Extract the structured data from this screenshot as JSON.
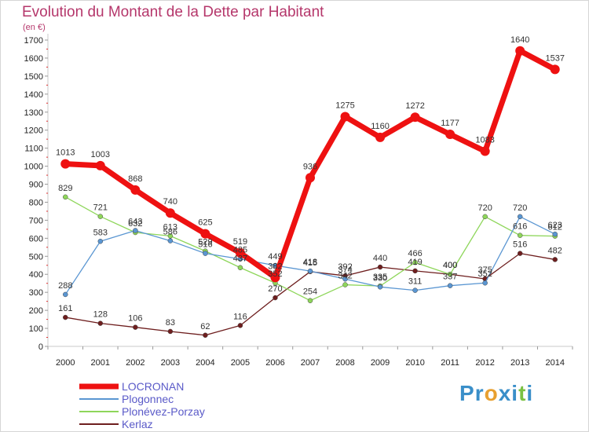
{
  "header": {
    "title": "Evolution du Montant de la Dette par Habitant",
    "unit": "(en €)"
  },
  "brand": {
    "letters": [
      "P",
      "r",
      "o",
      "x",
      "i",
      "t",
      "i"
    ],
    "colors": [
      "#3a8fc9",
      "#3a8fc9",
      "#e8a030",
      "#3a8fc9",
      "#3a8fc9",
      "#7ac143",
      "#3a8fc9"
    ]
  },
  "chart_data": {
    "type": "line",
    "x": [
      2000,
      2001,
      2002,
      2003,
      2004,
      2005,
      2006,
      2007,
      2008,
      2009,
      2010,
      2011,
      2012,
      2013,
      2014
    ],
    "ylim": [
      0,
      1700
    ],
    "ytick_step": 100,
    "grid": false,
    "series": [
      {
        "name": "Kerlaz",
        "color": "#6e1e1e",
        "values": [
          161,
          128,
          106,
          83,
          62,
          116,
          270,
          415,
          392,
          440,
          419,
          400,
          375,
          516,
          482
        ]
      },
      {
        "name": "Plonévez-Porzay",
        "color": "#8ed65a",
        "values": [
          829,
          721,
          632,
          613,
          529,
          437,
          352,
          254,
          342,
          335,
          466,
          400,
          720,
          616,
          612
        ]
      },
      {
        "name": "Plogonnec",
        "color": "#5a96d2",
        "values": [
          288,
          583,
          643,
          586,
          516,
          485,
          449,
          418,
          374,
          330,
          311,
          337,
          352,
          720,
          623
        ]
      },
      {
        "name": "LOCRONAN",
        "color": "#ee1111",
        "values": [
          1013,
          1003,
          868,
          740,
          625,
          519,
          382,
          936,
          1275,
          1160,
          1272,
          1177,
          1083,
          1640,
          1537
        ]
      }
    ],
    "legend_order": [
      "LOCRONAN",
      "Plogonnec",
      "Plonévez-Porzay",
      "Kerlaz"
    ],
    "legend_placement": "bottom-left"
  }
}
